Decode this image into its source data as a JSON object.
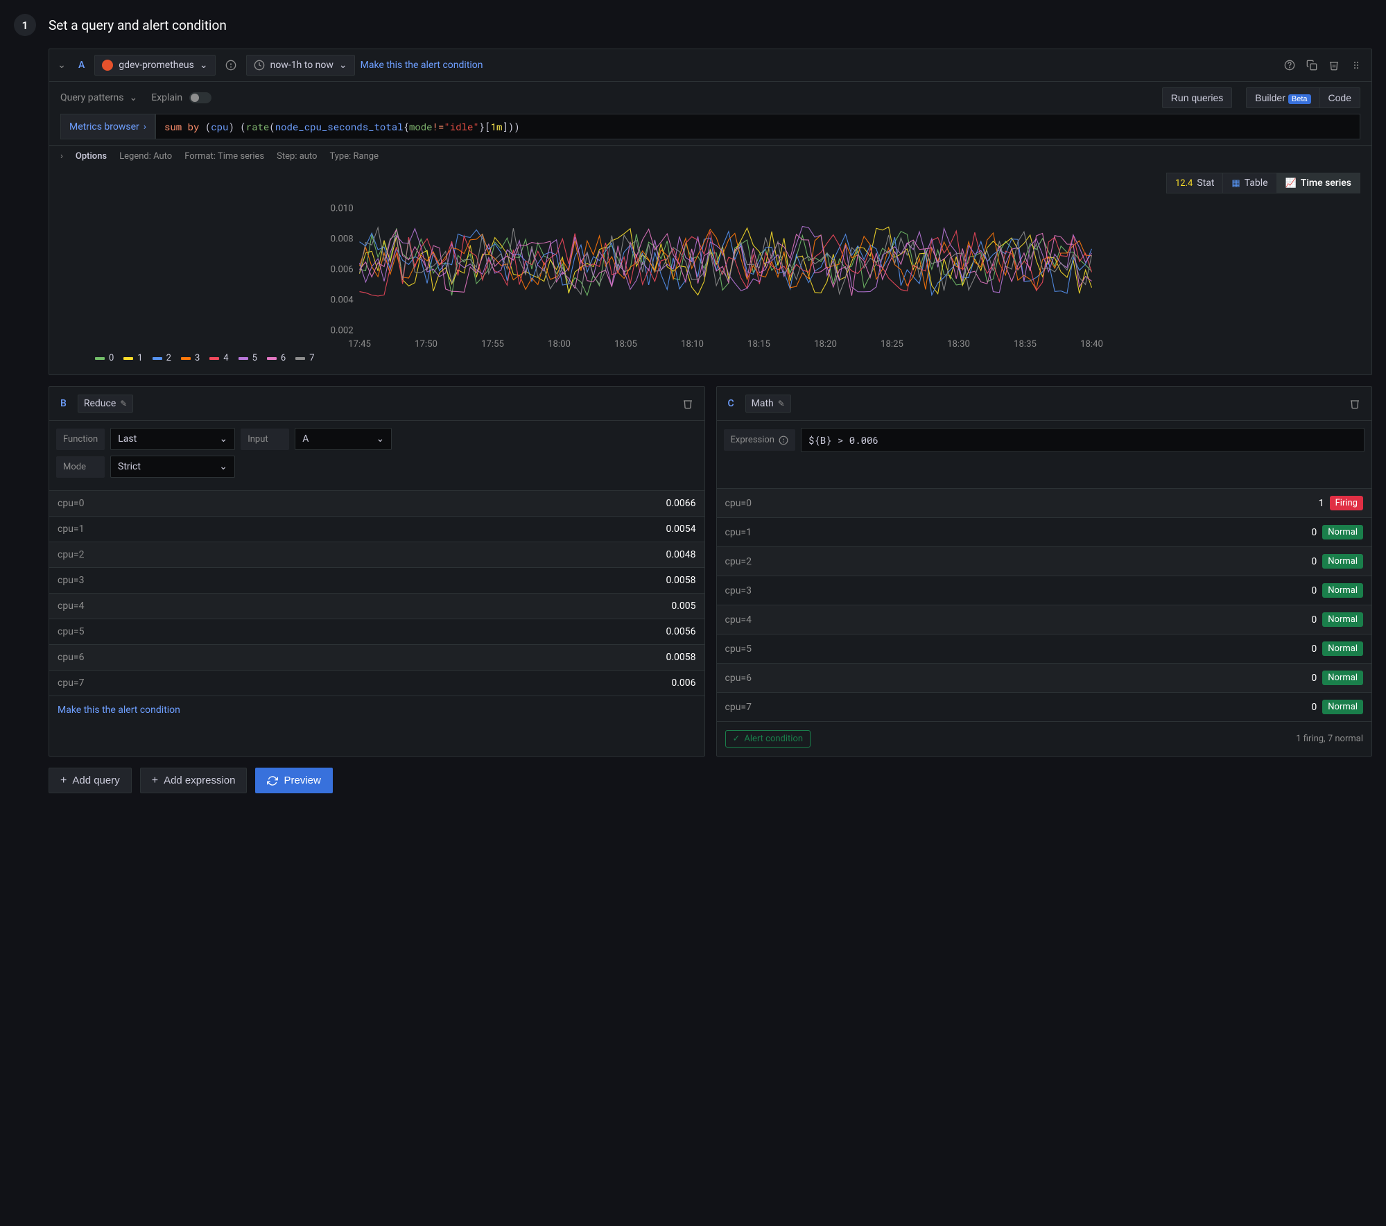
{
  "step": {
    "number": "1",
    "title": "Set a query and alert condition"
  },
  "queryA": {
    "refId": "A",
    "datasource": "gdev-prometheus",
    "timeRange": "now-1h to now",
    "makeAlertLink": "Make this the alert condition",
    "queryPatterns": "Query patterns",
    "explain": "Explain",
    "runQueries": "Run queries",
    "builder": "Builder",
    "beta": "Beta",
    "code": "Code",
    "metricsBrowser": "Metrics browser",
    "query": {
      "raw": "sum by (cpu) (rate(node_cpu_seconds_total{mode!=\"idle\"}[1m]))"
    },
    "options": {
      "label": "Options",
      "legend": "Legend: Auto",
      "format": "Format: Time series",
      "step": "Step: auto",
      "type": "Type: Range"
    },
    "vizTabs": {
      "stat": "Stat",
      "table": "Table",
      "timeSeries": "Time series"
    }
  },
  "chart": {
    "type": "line",
    "ylim": [
      0.002,
      0.01
    ],
    "yticks": [
      0.002,
      0.004,
      0.006,
      0.008,
      0.01
    ],
    "xticks": [
      "17:45",
      "17:50",
      "17:55",
      "18:00",
      "18:05",
      "18:10",
      "18:15",
      "18:20",
      "18:25",
      "18:30",
      "18:35",
      "18:40"
    ],
    "series_colors": [
      "#73bf69",
      "#fade2a",
      "#5794f2",
      "#ff780a",
      "#f2495c",
      "#b877d9",
      "#e377c2",
      "#8e8e8e"
    ],
    "series_labels": [
      "0",
      "1",
      "2",
      "3",
      "4",
      "5",
      "6",
      "7"
    ],
    "background": "#181b1f",
    "grid_color": "#2c3235",
    "n_points": 120,
    "data_min": 0.0035,
    "data_max": 0.0095
  },
  "panelB": {
    "refId": "B",
    "type": "Reduce",
    "functionLabel": "Function",
    "functionValue": "Last",
    "inputLabel": "Input",
    "inputValue": "A",
    "modeLabel": "Mode",
    "modeValue": "Strict",
    "results": [
      {
        "label": "cpu=0",
        "value": "0.0066"
      },
      {
        "label": "cpu=1",
        "value": "0.0054"
      },
      {
        "label": "cpu=2",
        "value": "0.0048"
      },
      {
        "label": "cpu=3",
        "value": "0.0058"
      },
      {
        "label": "cpu=4",
        "value": "0.005"
      },
      {
        "label": "cpu=5",
        "value": "0.0056"
      },
      {
        "label": "cpu=6",
        "value": "0.0058"
      },
      {
        "label": "cpu=7",
        "value": "0.006"
      }
    ],
    "footerLink": "Make this the alert condition"
  },
  "panelC": {
    "refId": "C",
    "type": "Math",
    "expressionLabel": "Expression",
    "expressionValue": "${B} > 0.006",
    "results": [
      {
        "label": "cpu=0",
        "value": "1",
        "status": "Firing"
      },
      {
        "label": "cpu=1",
        "value": "0",
        "status": "Normal"
      },
      {
        "label": "cpu=2",
        "value": "0",
        "status": "Normal"
      },
      {
        "label": "cpu=3",
        "value": "0",
        "status": "Normal"
      },
      {
        "label": "cpu=4",
        "value": "0",
        "status": "Normal"
      },
      {
        "label": "cpu=5",
        "value": "0",
        "status": "Normal"
      },
      {
        "label": "cpu=6",
        "value": "0",
        "status": "Normal"
      },
      {
        "label": "cpu=7",
        "value": "0",
        "status": "Normal"
      }
    ],
    "alertCondition": "Alert condition",
    "summary": "1 firing, 7 normal"
  },
  "actions": {
    "addQuery": "Add query",
    "addExpression": "Add expression",
    "preview": "Preview"
  }
}
